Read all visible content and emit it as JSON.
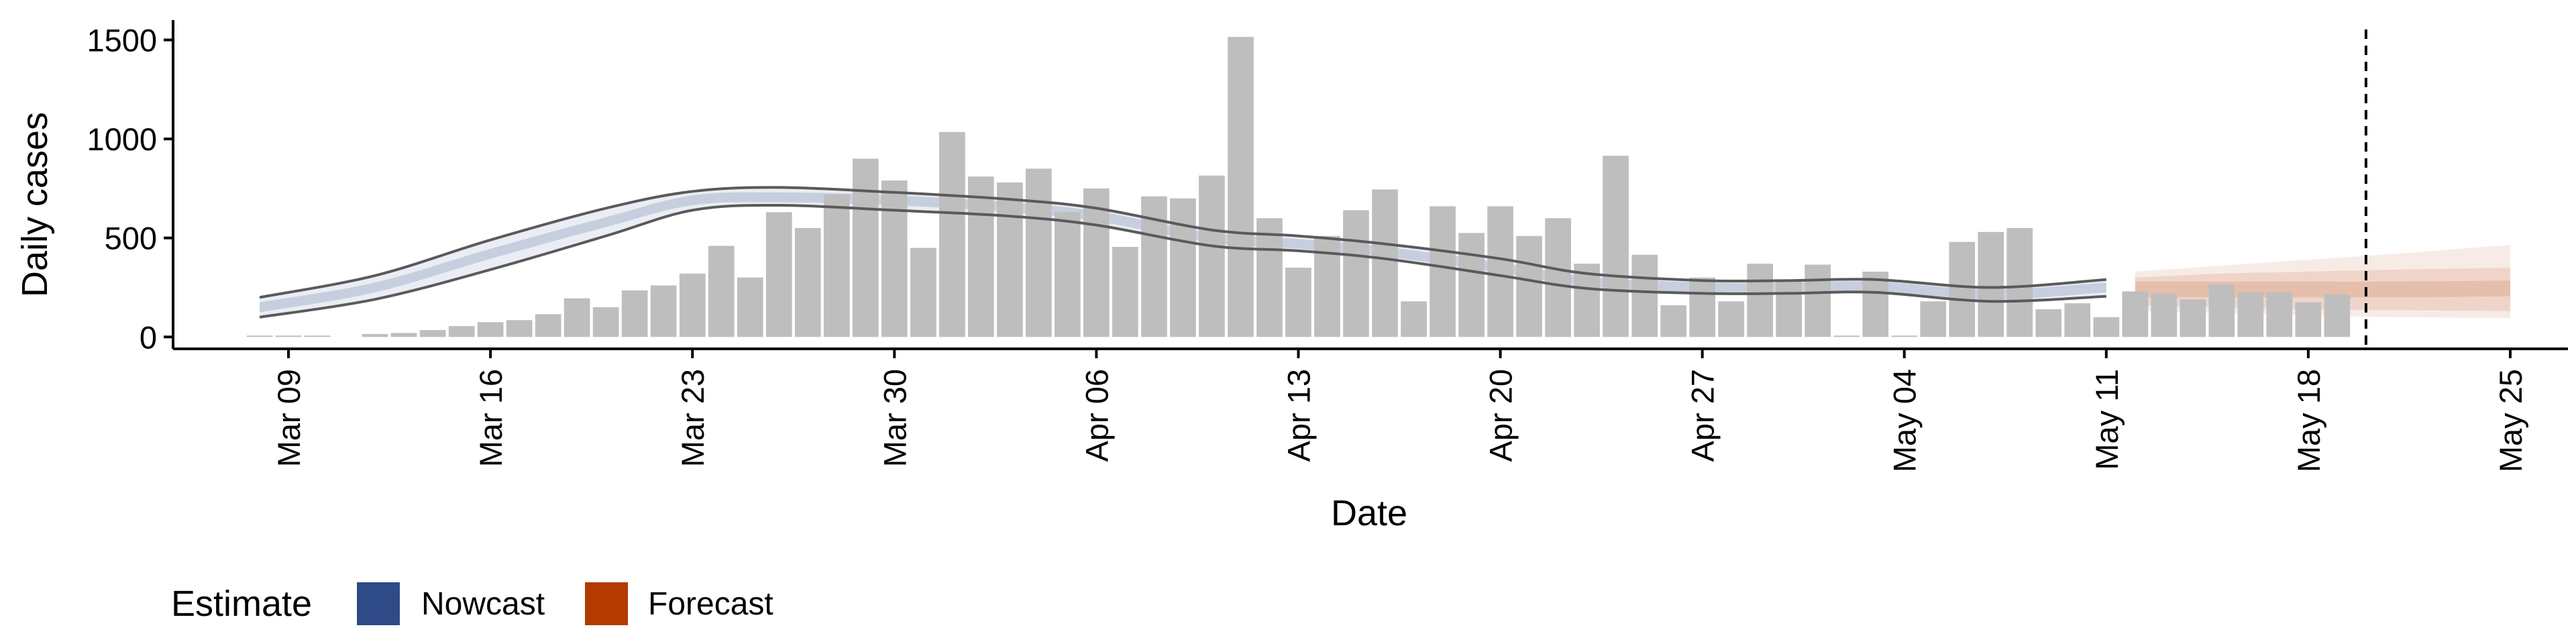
{
  "chart_data": {
    "type": "bar",
    "xlabel": "Date",
    "ylabel": "Daily cases",
    "ylim": [
      -60,
      1600
    ],
    "yticks": [
      0,
      500,
      1000,
      1500
    ],
    "xlim": [
      "2020-03-05",
      "2020-05-27"
    ],
    "xticks": [
      {
        "date": "2020-03-09",
        "label": "Mar 09"
      },
      {
        "date": "2020-03-16",
        "label": "Mar 16"
      },
      {
        "date": "2020-03-23",
        "label": "Mar 23"
      },
      {
        "date": "2020-03-30",
        "label": "Mar 30"
      },
      {
        "date": "2020-04-06",
        "label": "Apr 06"
      },
      {
        "date": "2020-04-13",
        "label": "Apr 13"
      },
      {
        "date": "2020-04-20",
        "label": "Apr 20"
      },
      {
        "date": "2020-04-27",
        "label": "Apr 27"
      },
      {
        "date": "2020-05-04",
        "label": "May 04"
      },
      {
        "date": "2020-05-11",
        "label": "May 11"
      },
      {
        "date": "2020-05-18",
        "label": "May 18"
      },
      {
        "date": "2020-05-25",
        "label": "May 25"
      }
    ],
    "bars": {
      "start_date": "2020-03-08",
      "color": "#bebebe",
      "values": [
        5,
        5,
        5,
        null,
        15,
        20,
        35,
        55,
        75,
        85,
        115,
        195,
        150,
        235,
        260,
        320,
        460,
        300,
        630,
        550,
        720,
        900,
        790,
        450,
        1035,
        810,
        780,
        850,
        630,
        750,
        455,
        710,
        700,
        815,
        1515,
        600,
        350,
        510,
        640,
        745,
        180,
        660,
        525,
        660,
        510,
        600,
        370,
        915,
        415,
        160,
        300,
        180,
        370,
        280,
        365,
        0,
        330,
        0,
        180,
        480,
        530,
        550,
        140,
        170,
        100,
        230,
        220,
        190,
        265,
        225,
        225,
        175,
        215
      ]
    },
    "vline": {
      "date": "2020-05-20",
      "style": "dashed"
    },
    "nowcast": {
      "name": "Nowcast",
      "color": "#2e4a87",
      "start_date": "2020-03-08",
      "end_date": "2020-05-11",
      "knots": [
        {
          "date": "2020-03-08",
          "median": 150,
          "lower": 100,
          "upper": 200
        },
        {
          "date": "2020-03-12",
          "median": 250,
          "lower": 190,
          "upper": 310
        },
        {
          "date": "2020-03-16",
          "median": 420,
          "lower": 340,
          "upper": 490
        },
        {
          "date": "2020-03-20",
          "median": 580,
          "lower": 510,
          "upper": 650
        },
        {
          "date": "2020-03-23",
          "median": 690,
          "lower": 640,
          "upper": 735
        },
        {
          "date": "2020-03-26",
          "median": 705,
          "lower": 665,
          "upper": 755
        },
        {
          "date": "2020-03-30",
          "median": 690,
          "lower": 640,
          "upper": 730
        },
        {
          "date": "2020-04-03",
          "median": 655,
          "lower": 610,
          "upper": 695
        },
        {
          "date": "2020-04-06",
          "median": 610,
          "lower": 565,
          "upper": 650
        },
        {
          "date": "2020-04-10",
          "median": 500,
          "lower": 460,
          "upper": 540
        },
        {
          "date": "2020-04-13",
          "median": 470,
          "lower": 435,
          "upper": 510
        },
        {
          "date": "2020-04-16",
          "median": 430,
          "lower": 395,
          "upper": 470
        },
        {
          "date": "2020-04-20",
          "median": 350,
          "lower": 310,
          "upper": 395
        },
        {
          "date": "2020-04-23",
          "median": 280,
          "lower": 245,
          "upper": 320
        },
        {
          "date": "2020-04-27",
          "median": 250,
          "lower": 220,
          "upper": 285
        },
        {
          "date": "2020-04-30",
          "median": 250,
          "lower": 220,
          "upper": 285
        },
        {
          "date": "2020-05-03",
          "median": 255,
          "lower": 225,
          "upper": 290
        },
        {
          "date": "2020-05-07",
          "median": 215,
          "lower": 180,
          "upper": 250
        },
        {
          "date": "2020-05-11",
          "median": 250,
          "lower": 205,
          "upper": 290
        }
      ]
    },
    "forecast": {
      "name": "Forecast",
      "color": "#b33a00",
      "knots": [
        {
          "date": "2020-05-12",
          "median": 240,
          "lower": 160,
          "upper": 300,
          "lower90": 130,
          "upper90": 330
        },
        {
          "date": "2020-05-15",
          "median": 240,
          "lower": 150,
          "upper": 320,
          "lower90": 120,
          "upper90": 360
        },
        {
          "date": "2020-05-18",
          "median": 240,
          "lower": 140,
          "upper": 330,
          "lower90": 110,
          "upper90": 390
        },
        {
          "date": "2020-05-21",
          "median": 240,
          "lower": 135,
          "upper": 340,
          "lower90": 100,
          "upper90": 420
        },
        {
          "date": "2020-05-25",
          "median": 245,
          "lower": 130,
          "upper": 350,
          "lower90": 95,
          "upper90": 465
        }
      ]
    },
    "legend": {
      "title": "Estimate",
      "position": "bottom",
      "items": [
        {
          "label": "Nowcast",
          "color": "#2e4a87"
        },
        {
          "label": "Forecast",
          "color": "#b33a00"
        }
      ]
    },
    "grid": false
  }
}
